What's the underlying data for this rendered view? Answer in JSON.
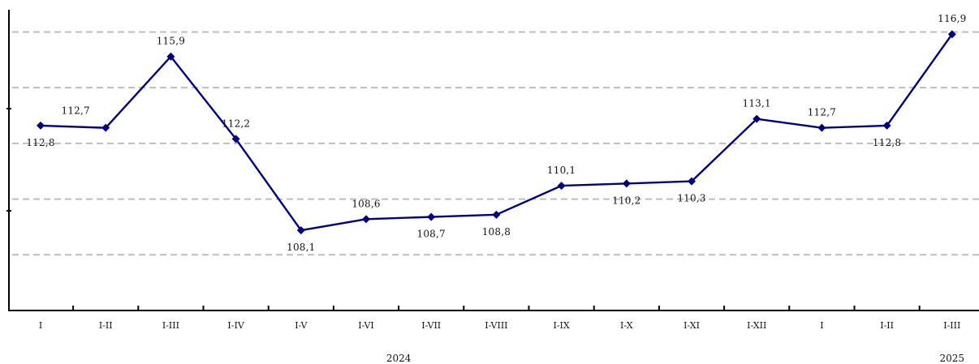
{
  "chart_data": {
    "type": "line",
    "title": "",
    "xlabel": "",
    "ylabel": "",
    "ylim": [
      104.5,
      118
    ],
    "grid": true,
    "grid_values": [
      107.0,
      109.5,
      112.0,
      114.5,
      117.0
    ],
    "categories": [
      "I",
      "I-II",
      "I-III",
      "I-IV",
      "I-V",
      "I-VI",
      "I-VII",
      "I-VIII",
      "I-IX",
      "I-X",
      "I-XI",
      "I-XII",
      "I",
      "I-II",
      "I-III"
    ],
    "category_display": [
      "I",
      "I-II",
      "I-III",
      "I-IV",
      "I-V",
      "I-VI",
      "I-VII",
      "I-VIII",
      "I-IX",
      "I-X",
      "I-XI",
      "I-XII",
      "I",
      "I-II",
      "I-III"
    ],
    "groups": [
      {
        "label": "2024",
        "start": 0,
        "end": 11
      },
      {
        "label": "2025",
        "start": 12,
        "end": 14
      }
    ],
    "series": [
      {
        "color": "#000080",
        "values": [
          112.8,
          112.7,
          115.9,
          112.2,
          108.1,
          108.6,
          108.7,
          108.8,
          110.1,
          110.2,
          110.3,
          113.1,
          112.7,
          112.8,
          116.9
        ],
        "labels": [
          "112,8",
          "112,7",
          "115,9",
          "112,2",
          "108,1",
          "108,6",
          "108,7",
          "108,8",
          "110,1",
          "110,2",
          "110,3",
          "113,1",
          "112,7",
          "112,8",
          "116,9"
        ],
        "label_positions": [
          "below",
          "above-left",
          "above",
          "above",
          "below",
          "above",
          "below",
          "below",
          "above",
          "below",
          "below",
          "above",
          "above",
          "below",
          "above"
        ]
      }
    ]
  }
}
